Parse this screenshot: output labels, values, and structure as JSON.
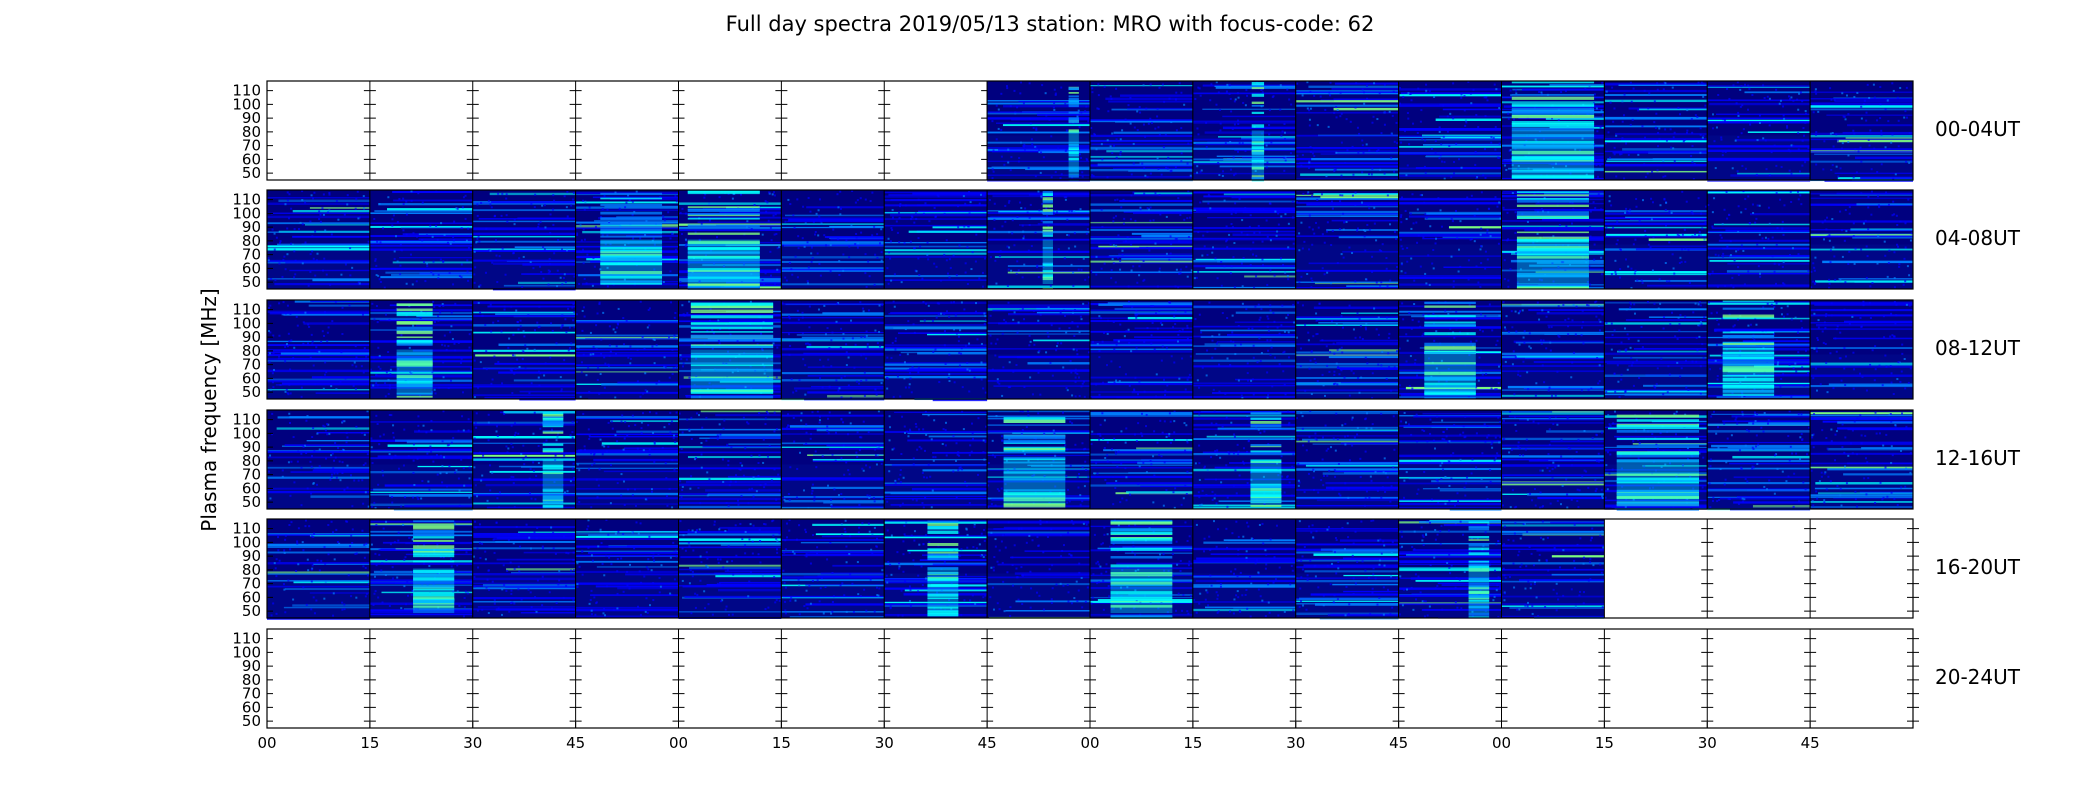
{
  "chart_data": {
    "type": "heatmap",
    "title": "Full day spectra 2019/05/13 station: MRO with focus-code: 62",
    "ylabel": "Plasma frequency [MHz]",
    "xlabel": "",
    "yticks": [
      50,
      60,
      70,
      80,
      90,
      100,
      110
    ],
    "ylim": [
      45,
      117
    ],
    "xtick_labels": [
      "00",
      "15",
      "30",
      "45",
      "00",
      "15",
      "30",
      "45",
      "00",
      "15",
      "30",
      "45",
      "00",
      "15",
      "30",
      "45"
    ],
    "columns_per_row": 16,
    "colormap": [
      "#00007f",
      "#0000ff",
      "#007fff",
      "#00ffff",
      "#7fff7f"
    ],
    "rows": [
      {
        "label": "00-04UT",
        "data_panels": [
          0,
          0,
          0,
          0,
          0,
          0,
          0,
          1,
          1,
          1,
          1,
          1,
          1,
          1,
          1,
          1
        ],
        "bursts": [
          {
            "col": 7,
            "pos": 0.88,
            "w": 0.1
          },
          {
            "col": 9,
            "pos": 0.65,
            "w": 0.12
          },
          {
            "col": 12,
            "pos": 0.5,
            "w": 0.8
          }
        ]
      },
      {
        "label": "04-08UT",
        "data_panels": [
          1,
          1,
          1,
          1,
          1,
          1,
          1,
          1,
          1,
          1,
          1,
          1,
          1,
          1,
          1,
          1
        ],
        "bursts": [
          {
            "col": 3,
            "pos": 0.6,
            "w": 0.6
          },
          {
            "col": 4,
            "pos": 0.3,
            "w": 0.7
          },
          {
            "col": 7,
            "pos": 0.6,
            "w": 0.1
          },
          {
            "col": 12,
            "pos": 0.5,
            "w": 0.7
          }
        ]
      },
      {
        "label": "08-12UT",
        "data_panels": [
          1,
          1,
          1,
          1,
          1,
          1,
          1,
          1,
          1,
          1,
          1,
          1,
          1,
          1,
          1,
          1
        ],
        "bursts": [
          {
            "col": 1,
            "pos": 0.4,
            "w": 0.35
          },
          {
            "col": 4,
            "pos": 0.6,
            "w": 0.8
          },
          {
            "col": 11,
            "pos": 0.5,
            "w": 0.5
          },
          {
            "col": 14,
            "pos": 0.3,
            "w": 0.5
          }
        ]
      },
      {
        "label": "12-16UT",
        "data_panels": [
          1,
          1,
          1,
          1,
          1,
          1,
          1,
          1,
          1,
          1,
          1,
          1,
          1,
          1,
          1,
          1
        ],
        "bursts": [
          {
            "col": 2,
            "pos": 0.85,
            "w": 0.2
          },
          {
            "col": 7,
            "pos": 0.4,
            "w": 0.6
          },
          {
            "col": 9,
            "pos": 0.8,
            "w": 0.3
          },
          {
            "col": 13,
            "pos": 0.6,
            "w": 0.8
          }
        ]
      },
      {
        "label": "16-20UT",
        "data_panels": [
          1,
          1,
          1,
          1,
          1,
          1,
          1,
          1,
          1,
          1,
          1,
          1,
          1,
          0,
          0,
          0
        ],
        "bursts": [
          {
            "col": 1,
            "pos": 0.7,
            "w": 0.4
          },
          {
            "col": 6,
            "pos": 0.6,
            "w": 0.3
          },
          {
            "col": 8,
            "pos": 0.5,
            "w": 0.6
          },
          {
            "col": 11,
            "pos": 0.85,
            "w": 0.2
          }
        ]
      },
      {
        "label": "20-24UT",
        "data_panels": [
          0,
          0,
          0,
          0,
          0,
          0,
          0,
          0,
          0,
          0,
          0,
          0,
          0,
          0,
          0,
          0
        ],
        "bursts": []
      }
    ]
  }
}
